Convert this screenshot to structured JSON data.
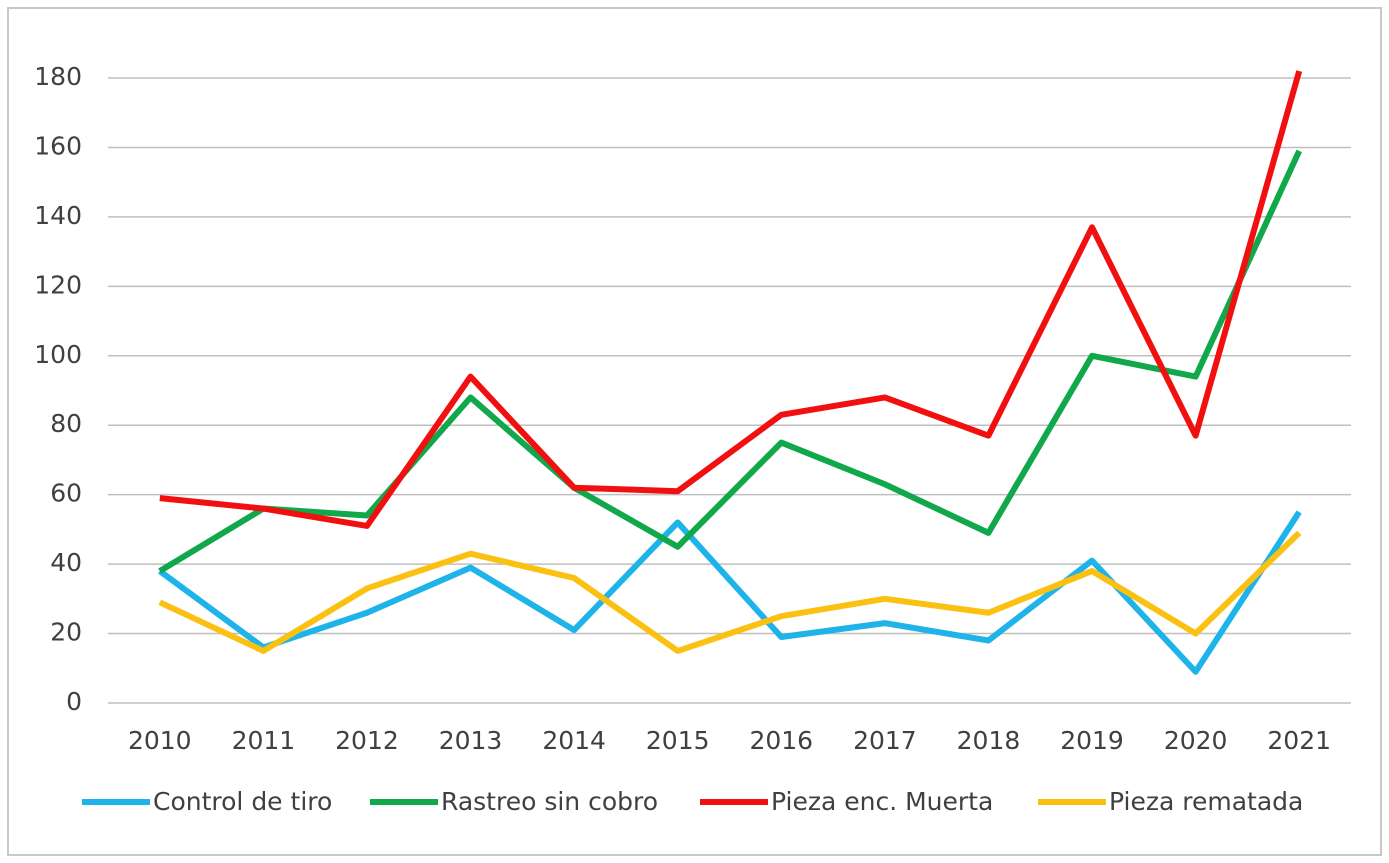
{
  "chart_data": {
    "type": "line",
    "categories": [
      "2010",
      "2011",
      "2012",
      "2013",
      "2014",
      "2015",
      "2016",
      "2017",
      "2018",
      "2019",
      "2020",
      "2021"
    ],
    "series": [
      {
        "name": "Control de tiro",
        "color": "#1eb4ea",
        "values": [
          38,
          16,
          26,
          39,
          21,
          52,
          19,
          23,
          18,
          41,
          9,
          55
        ]
      },
      {
        "name": "Rastreo sin cobro",
        "color": "#10a84a",
        "values": [
          38,
          56,
          54,
          88,
          62,
          45,
          75,
          63,
          49,
          100,
          94,
          159
        ]
      },
      {
        "name": "Pieza enc. Muerta",
        "color": "#f20f0f",
        "values": [
          59,
          56,
          51,
          94,
          62,
          61,
          83,
          88,
          77,
          137,
          77,
          182
        ]
      },
      {
        "name": "Pieza rematada",
        "color": "#fbc112",
        "values": [
          29,
          15,
          33,
          43,
          36,
          15,
          25,
          30,
          26,
          38,
          20,
          49
        ]
      }
    ],
    "ylim": [
      0,
      180
    ],
    "yticks": [
      0,
      20,
      40,
      60,
      80,
      100,
      120,
      140,
      160,
      180
    ],
    "grid": true,
    "legend": "bottom"
  }
}
